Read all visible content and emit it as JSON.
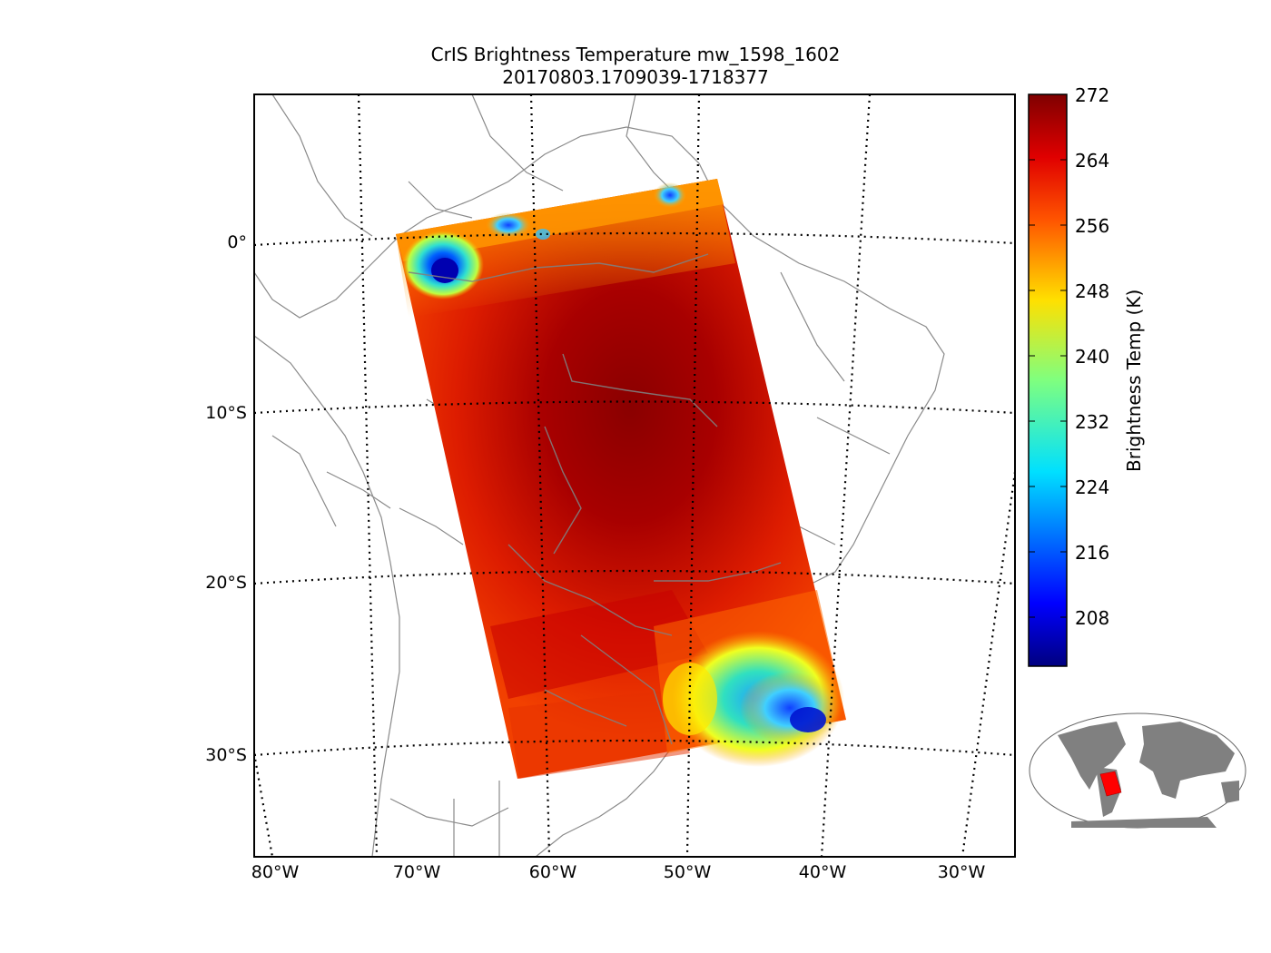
{
  "title": {
    "line1": "CrIS Brightness Temperature mw_1598_1602",
    "line2": "20170803.1709039-1718377"
  },
  "map": {
    "projection": "oblique / conic",
    "lat_labels": [
      "0°",
      "10°S",
      "20°S",
      "30°S"
    ],
    "lon_labels": [
      "80°W",
      "70°W",
      "60°W",
      "50°W",
      "40°W",
      "30°W"
    ],
    "grid_style": "dotted",
    "coastline_color": "#808080",
    "swath_color_min": "#0000ff",
    "swath_color_max": "#8b0000"
  },
  "colorbar": {
    "label": "Brightness Temp (K)",
    "ticks": [
      "272",
      "264",
      "256",
      "248",
      "240",
      "232",
      "224",
      "216",
      "208"
    ],
    "vmin": 202,
    "vmax": 272,
    "colormap": "jet"
  },
  "inset": {
    "description_icon": "world-locator-map",
    "land_color": "#808080",
    "swath_color": "#ff0000"
  }
}
